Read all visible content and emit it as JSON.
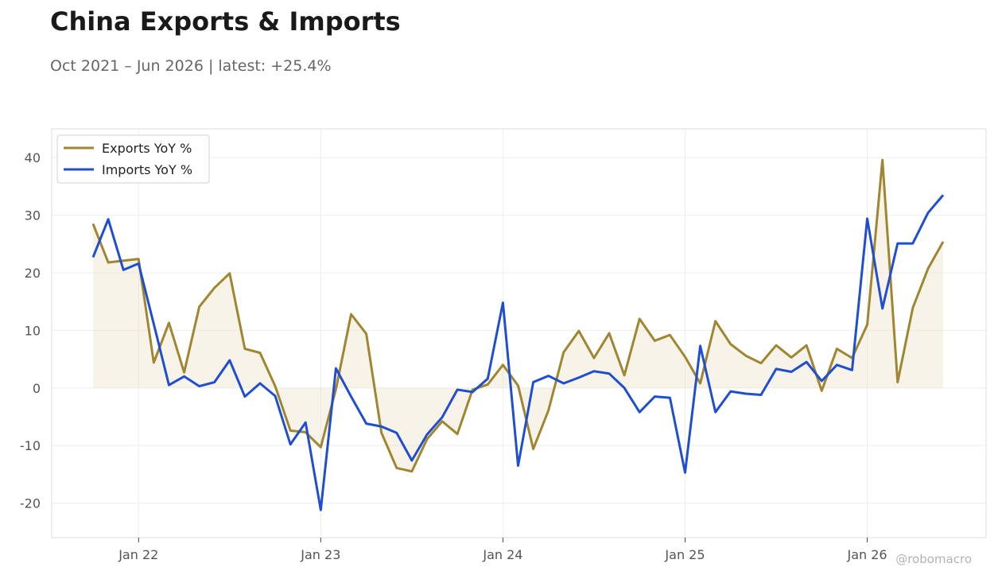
{
  "title": "China Exports & Imports",
  "subtitle": "Oct 2021 – Jun 2026 | latest: +25.4%",
  "watermark": "@robomacro",
  "colors": {
    "exports": "#A08630",
    "imports": "#1F4FD0",
    "fill": "#E8DCC0",
    "grid": "#eeeeee"
  },
  "chart_data": {
    "type": "line",
    "title": "",
    "xlabel": "",
    "ylabel": "",
    "ylim": [
      -26,
      45
    ],
    "grid": true,
    "legend_position": "top-left",
    "yticks": [
      -20,
      -10,
      0,
      10,
      20,
      30,
      40
    ],
    "yticklabels": [
      "-20",
      "-10",
      "0",
      "10",
      "20",
      "30",
      "40"
    ],
    "xticks": [
      "2022-01",
      "2023-01",
      "2024-01",
      "2025-01",
      "2026-01"
    ],
    "xticklabels": [
      "Jan 22",
      "Jan 23",
      "Jan 24",
      "Jan 25",
      "Jan 26"
    ],
    "shaded_area": "Exports YoY % relative to 0",
    "x": [
      "2021-10",
      "2021-11",
      "2021-12",
      "2022-01",
      "2022-02",
      "2022-03",
      "2022-04",
      "2022-05",
      "2022-06",
      "2022-07",
      "2022-08",
      "2022-09",
      "2022-10",
      "2022-11",
      "2022-12",
      "2023-01",
      "2023-02",
      "2023-03",
      "2023-04",
      "2023-05",
      "2023-06",
      "2023-07",
      "2023-08",
      "2023-09",
      "2023-10",
      "2023-11",
      "2023-12",
      "2024-01",
      "2024-02",
      "2024-03",
      "2024-04",
      "2024-05",
      "2024-06",
      "2024-07",
      "2024-08",
      "2024-09",
      "2024-10",
      "2024-11",
      "2024-12",
      "2025-01",
      "2025-02",
      "2025-03",
      "2025-04",
      "2025-05",
      "2025-06",
      "2025-07",
      "2025-08",
      "2025-09",
      "2025-10",
      "2025-11",
      "2025-12",
      "2026-01",
      "2026-02",
      "2026-03",
      "2026-04",
      "2026-05",
      "2026-06"
    ],
    "series": [
      {
        "name": "Exports YoY %",
        "values": [
          28.5,
          21.8,
          22.1,
          22.4,
          4.4,
          11.3,
          2.7,
          14.1,
          17.4,
          19.9,
          6.8,
          6.1,
          0.3,
          -7.4,
          -7.7,
          -10.3,
          -0.2,
          12.8,
          9.4,
          -7.8,
          -13.9,
          -14.5,
          -8.9,
          -5.8,
          -8.0,
          -0.3,
          0.6,
          4.0,
          0.4,
          -10.6,
          -3.9,
          6.2,
          9.9,
          5.2,
          9.5,
          2.2,
          12.0,
          8.2,
          9.2,
          5.4,
          0.8,
          11.6,
          7.6,
          5.6,
          4.3,
          7.4,
          5.3,
          7.4,
          -0.5,
          6.8,
          5.2,
          11.0,
          39.6,
          1.0,
          13.9,
          20.7,
          25.4
        ]
      },
      {
        "name": "Imports YoY %",
        "values": [
          22.7,
          29.3,
          20.5,
          21.6,
          11.1,
          0.5,
          2.0,
          0.3,
          1.0,
          4.8,
          -1.5,
          0.8,
          -1.4,
          -9.8,
          -6.0,
          -21.2,
          3.4,
          -1.5,
          -6.2,
          -6.7,
          -7.8,
          -12.6,
          -8.1,
          -5.1,
          -0.3,
          -0.7,
          1.6,
          14.8,
          -13.5,
          1.0,
          2.1,
          0.8,
          1.8,
          2.9,
          2.5,
          0.0,
          -4.2,
          -1.5,
          -1.7,
          -14.7,
          7.3,
          -4.2,
          -0.6,
          -1.0,
          -1.2,
          3.3,
          2.8,
          4.5,
          1.2,
          4.0,
          3.1,
          29.4,
          13.8,
          25.1,
          25.1,
          30.4,
          33.5
        ]
      }
    ]
  }
}
